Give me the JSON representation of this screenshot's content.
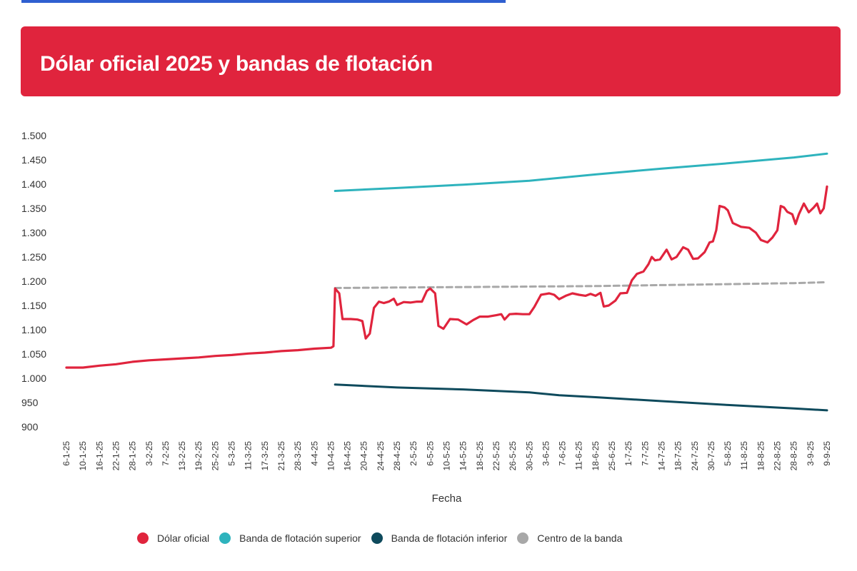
{
  "page": {
    "accent_bar_color": "#2f5fd0"
  },
  "banner": {
    "title": "Dólar oficial 2025 y bandas de flotación",
    "color": "#e0243d"
  },
  "chart_data": {
    "type": "line",
    "title": "Dólar oficial 2025 y bandas de flotación",
    "xlabel": "Fecha",
    "ylabel": "",
    "ylim": [
      900,
      1500
    ],
    "yticks": [
      "1.500",
      "1.450",
      "1.400",
      "1.350",
      "1.300",
      "1.250",
      "1.200",
      "1.150",
      "1.100",
      "1.050",
      "1.000",
      "950",
      "900"
    ],
    "ytick_values": [
      1500,
      1450,
      1400,
      1350,
      1300,
      1250,
      1200,
      1150,
      1100,
      1050,
      1000,
      950,
      900
    ],
    "xticks": [
      "6-1-25",
      "10-1-25",
      "16-1-25",
      "22-1-25",
      "28-1-25",
      "3-2-25",
      "7-2-25",
      "13-2-25",
      "19-2-25",
      "25-2-25",
      "5-3-25",
      "11-3-25",
      "17-3-25",
      "21-3-25",
      "28-3-25",
      "4-4-25",
      "10-4-25",
      "16-4-25",
      "20-4-25",
      "24-4-25",
      "28-4-25",
      "2-5-25",
      "6-5-25",
      "10-5-25",
      "14-5-25",
      "18-5-25",
      "22-5-25",
      "26-5-25",
      "30-5-25",
      "3-6-25",
      "7-6-25",
      "11-6-25",
      "18-6-25",
      "25-6-25",
      "1-7-25",
      "7-7-25",
      "14-7-25",
      "18-7-25",
      "24-7-25",
      "30-7-25",
      "5-8-25",
      "11-8-25",
      "18-8-25",
      "22-8-25",
      "28-8-25",
      "3-9-25",
      "9-9-25"
    ],
    "grid": false,
    "legend_position": "bottom",
    "series": [
      {
        "name": "Dólar oficial",
        "color": "#e0243d",
        "dashed": false,
        "points": [
          [
            0,
            1022
          ],
          [
            1,
            1022
          ],
          [
            2,
            1026
          ],
          [
            3,
            1029
          ],
          [
            4,
            1034
          ],
          [
            5,
            1037
          ],
          [
            6,
            1039
          ],
          [
            7,
            1041
          ],
          [
            8,
            1043
          ],
          [
            9,
            1046
          ],
          [
            10,
            1048
          ],
          [
            11,
            1051
          ],
          [
            12,
            1053
          ],
          [
            13,
            1056
          ],
          [
            14,
            1058
          ],
          [
            15,
            1061
          ],
          [
            16,
            1063
          ],
          [
            16.15,
            1066
          ],
          [
            16.25,
            1185
          ],
          [
            16.5,
            1175
          ],
          [
            16.7,
            1122
          ],
          [
            17.2,
            1122
          ],
          [
            17.6,
            1121
          ],
          [
            17.9,
            1118
          ],
          [
            18.1,
            1082
          ],
          [
            18.35,
            1092
          ],
          [
            18.6,
            1145
          ],
          [
            18.9,
            1158
          ],
          [
            19.2,
            1155
          ],
          [
            19.5,
            1158
          ],
          [
            19.8,
            1164
          ],
          [
            20.0,
            1151
          ],
          [
            20.4,
            1157
          ],
          [
            20.8,
            1156
          ],
          [
            21.2,
            1158
          ],
          [
            21.5,
            1158
          ],
          [
            21.8,
            1180
          ],
          [
            22.0,
            1185
          ],
          [
            22.3,
            1175
          ],
          [
            22.5,
            1108
          ],
          [
            22.8,
            1102
          ],
          [
            23.2,
            1122
          ],
          [
            23.7,
            1121
          ],
          [
            24.2,
            1111
          ],
          [
            24.6,
            1120
          ],
          [
            25,
            1127
          ],
          [
            25.5,
            1127
          ],
          [
            26,
            1130
          ],
          [
            26.3,
            1132
          ],
          [
            26.5,
            1121
          ],
          [
            26.8,
            1132
          ],
          [
            27.2,
            1133
          ],
          [
            27.6,
            1132
          ],
          [
            28,
            1132
          ],
          [
            28.3,
            1147
          ],
          [
            28.7,
            1172
          ],
          [
            29.2,
            1175
          ],
          [
            29.5,
            1172
          ],
          [
            29.8,
            1163
          ],
          [
            30.2,
            1170
          ],
          [
            30.6,
            1175
          ],
          [
            31,
            1172
          ],
          [
            31.4,
            1170
          ],
          [
            31.7,
            1174
          ],
          [
            32.0,
            1170
          ],
          [
            32.3,
            1176
          ],
          [
            32.5,
            1148
          ],
          [
            32.8,
            1150
          ],
          [
            33.2,
            1160
          ],
          [
            33.5,
            1175
          ],
          [
            33.9,
            1176
          ],
          [
            34.2,
            1202
          ],
          [
            34.5,
            1215
          ],
          [
            34.9,
            1220
          ],
          [
            35.2,
            1235
          ],
          [
            35.4,
            1250
          ],
          [
            35.6,
            1243
          ],
          [
            35.9,
            1245
          ],
          [
            36.3,
            1265
          ],
          [
            36.6,
            1245
          ],
          [
            36.9,
            1250
          ],
          [
            37.3,
            1270
          ],
          [
            37.6,
            1265
          ],
          [
            37.9,
            1246
          ],
          [
            38.2,
            1247
          ],
          [
            38.6,
            1260
          ],
          [
            38.9,
            1280
          ],
          [
            39.1,
            1282
          ],
          [
            39.3,
            1305
          ],
          [
            39.5,
            1355
          ],
          [
            39.8,
            1352
          ],
          [
            40.0,
            1346
          ],
          [
            40.3,
            1320
          ],
          [
            40.8,
            1312
          ],
          [
            41.3,
            1310
          ],
          [
            41.7,
            1300
          ],
          [
            42.0,
            1285
          ],
          [
            42.4,
            1280
          ],
          [
            42.7,
            1290
          ],
          [
            43.0,
            1305
          ],
          [
            43.2,
            1355
          ],
          [
            43.4,
            1352
          ],
          [
            43.6,
            1343
          ],
          [
            43.9,
            1338
          ],
          [
            44.1,
            1318
          ],
          [
            44.3,
            1338
          ],
          [
            44.6,
            1360
          ],
          [
            44.9,
            1342
          ],
          [
            45.2,
            1352
          ],
          [
            45.4,
            1360
          ],
          [
            45.6,
            1340
          ],
          [
            45.8,
            1350
          ],
          [
            46.0,
            1395
          ]
        ]
      },
      {
        "name": "Banda de flotación superior",
        "color": "#2eb3bd",
        "dashed": false,
        "points": [
          [
            16.25,
            1386
          ],
          [
            20,
            1392
          ],
          [
            24,
            1399
          ],
          [
            28,
            1407
          ],
          [
            32,
            1420
          ],
          [
            36,
            1432
          ],
          [
            40,
            1443
          ],
          [
            44,
            1455
          ],
          [
            46,
            1463
          ]
        ]
      },
      {
        "name": "Banda de flotación inferior",
        "color": "#0e4a5c",
        "dashed": false,
        "points": [
          [
            16.25,
            987
          ],
          [
            20,
            981
          ],
          [
            24,
            977
          ],
          [
            28,
            971
          ],
          [
            29.8,
            965
          ],
          [
            32,
            961
          ],
          [
            36,
            953
          ],
          [
            40,
            945
          ],
          [
            44,
            938
          ],
          [
            46,
            934
          ]
        ]
      },
      {
        "name": "Centro de la banda",
        "color": "#a8a8a8",
        "dashed": true,
        "points": [
          [
            16.25,
            1186
          ],
          [
            20,
            1187
          ],
          [
            24,
            1188
          ],
          [
            28,
            1189
          ],
          [
            32,
            1190
          ],
          [
            36,
            1192
          ],
          [
            40,
            1194
          ],
          [
            44,
            1196
          ],
          [
            46,
            1198
          ]
        ]
      }
    ]
  }
}
